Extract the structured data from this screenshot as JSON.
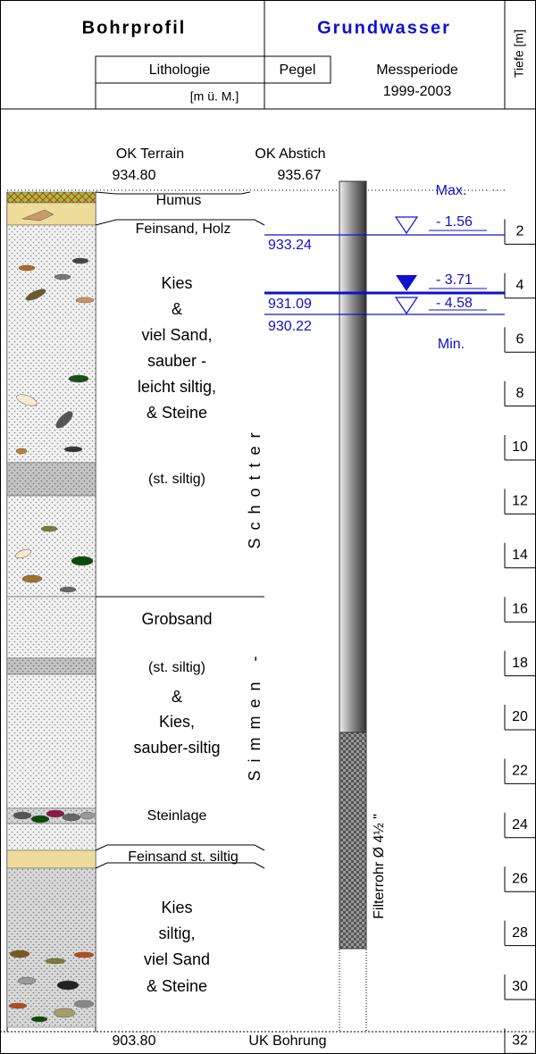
{
  "header": {
    "title": "Bohrprofil",
    "lithology": "Lithologie",
    "pegel": "Pegel",
    "unit": "[m ü. M.]",
    "groundwater": "Grundwasser",
    "period_label": "Messperiode",
    "period": "1999-2003",
    "depth_label": "Tiefe [m]"
  },
  "top": {
    "terrain_label": "OK Terrain",
    "terrain": "934.80",
    "abstich_label": "OK Abstich",
    "abstich": "935.67"
  },
  "layers": [
    "Humus",
    "Feinsand, Holz",
    "Kies",
    "&",
    "viel Sand,",
    "sauber -",
    "leicht siltig,",
    "& Steine",
    "(st. siltig)",
    "Grobsand",
    "(st. siltig)",
    "&",
    "Kies,",
    "sauber-siltig",
    "Steinlage",
    "Feinsand st. siltig",
    "Kies",
    "siltig,",
    "viel Sand",
    "& Steine"
  ],
  "formations": [
    "Schotter",
    "Simmen -"
  ],
  "water_levels": {
    "max_label": "Max.",
    "min_label": "Min.",
    "readings": [
      {
        "depth": "- 1.56",
        "elevation": "933.24"
      },
      {
        "depth": "- 3.71",
        "elevation": "931.09"
      },
      {
        "depth": "- 4.58",
        "elevation": "930.22"
      }
    ]
  },
  "pipe_label": "Filterrohr Ø 4½ \"",
  "bottom": {
    "elevation": "903.80",
    "label": "UK Bohrung"
  },
  "depth_ticks": [
    2,
    4,
    6,
    8,
    10,
    12,
    14,
    16,
    18,
    20,
    22,
    24,
    26,
    28,
    30,
    32
  ]
}
